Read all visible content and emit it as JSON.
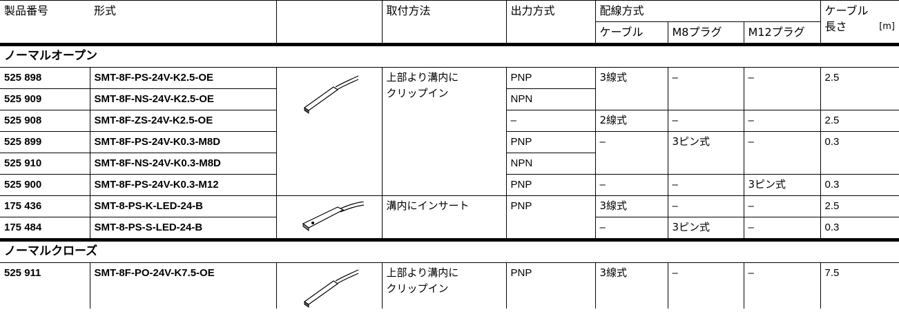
{
  "header": {
    "part_no": "製品番号",
    "type": "形式",
    "mounting": "取付方法",
    "output": "出力方式",
    "wiring": "配線方式",
    "cable": "ケーブル",
    "m8": "M8プラグ",
    "m12": "M12プラグ",
    "length_1": "ケーブル",
    "length_2": "長さ",
    "unit": "[m]"
  },
  "sections": [
    {
      "title": "ノーマルオープン",
      "rows": [
        {
          "part_no": "525 898",
          "type": "SMT-8F-PS-24V-K2.5-OE",
          "mounting": [
            "上部より溝内に",
            "クリップイン"
          ],
          "output": "PNP",
          "cable": "3線式",
          "m8": "–",
          "m12": "–",
          "length": "2.5"
        },
        {
          "part_no": "525 909",
          "type": "SMT-8F-NS-24V-K2.5-OE",
          "output": "NPN"
        },
        {
          "part_no": "525 908",
          "type": "SMT-8F-ZS-24V-K2.5-OE",
          "output": "–",
          "cable": "2線式",
          "m8": "–",
          "m12": "–",
          "length": "2.5"
        },
        {
          "part_no": "525 899",
          "type": "SMT-8F-PS-24V-K0.3-M8D",
          "output": "PNP",
          "cable": "–",
          "m8": "3ピン式",
          "m12": "–",
          "length": "0.3"
        },
        {
          "part_no": "525 910",
          "type": "SMT-8F-NS-24V-K0.3-M8D",
          "output": "NPN"
        },
        {
          "part_no": "525 900",
          "type": "SMT-8F-PS-24V-K0.3-M12",
          "output": "PNP",
          "cable": "–",
          "m8": "–",
          "m12": "3ピン式",
          "length": "0.3"
        },
        {
          "part_no": "175 436",
          "type": "SMT-8-PS-K-LED-24-B",
          "mounting": [
            "溝内にインサート"
          ],
          "output": "PNP",
          "cable": "3線式",
          "m8": "–",
          "m12": "–",
          "length": "2.5"
        },
        {
          "part_no": "175 484",
          "type": "SMT-8-PS-S-LED-24-B",
          "cable": "–",
          "m8": "3ピン式",
          "m12": "–",
          "length": "0.3"
        }
      ]
    },
    {
      "title": "ノーマルクローズ",
      "rows": [
        {
          "part_no": "525 911",
          "type": "SMT-8F-PO-24V-K7.5-OE",
          "mounting": [
            "上部より溝内に",
            "クリップイン"
          ],
          "output": "PNP",
          "cable": "3線式",
          "m8": "–",
          "m12": "–",
          "length": "7.5"
        }
      ]
    }
  ]
}
